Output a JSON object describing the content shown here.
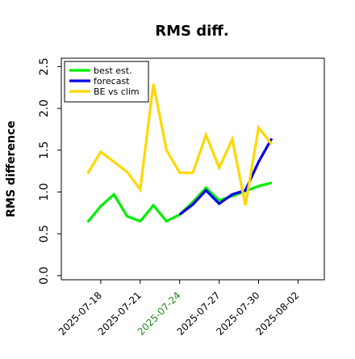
{
  "chart_data": {
    "type": "line",
    "title": "RMS diff.",
    "ylabel": "RMS difference",
    "xlabel": "",
    "ylim": [
      -0.05,
      2.6
    ],
    "yticks": [
      0.0,
      0.5,
      1.0,
      1.5,
      2.0,
      2.5
    ],
    "ytick_labels": [
      "0.0",
      "0.5",
      "1.0",
      "1.5",
      "2.0",
      "2.5"
    ],
    "xticks": [
      "2025-07-18",
      "2025-07-21",
      "2025-07-24",
      "2025-07-27",
      "2025-07-30",
      "2025-08-02"
    ],
    "xtick_labels": [
      "2025-07-18",
      "2025-07-21",
      "2025-07-24",
      "2025-07-27",
      "2025-07-30",
      "2025-08-02"
    ],
    "xtick_colors": [
      "#000000",
      "#000000",
      "#228b22",
      "#000000",
      "#000000",
      "#000000"
    ],
    "grid": false,
    "legend_position": "top-left",
    "series": [
      {
        "name": "best est.",
        "color": "#00ee00",
        "x": [
          "2025-07-17",
          "2025-07-18",
          "2025-07-19",
          "2025-07-20",
          "2025-07-21",
          "2025-07-22",
          "2025-07-23",
          "2025-07-24",
          "2025-07-25",
          "2025-07-26",
          "2025-07-27",
          "2025-07-28",
          "2025-07-29",
          "2025-07-30",
          "2025-07-31"
        ],
        "values": [
          0.64,
          0.83,
          0.97,
          0.71,
          0.65,
          0.84,
          0.65,
          0.73,
          0.88,
          1.05,
          0.9,
          0.95,
          1.01,
          1.07,
          1.11
        ]
      },
      {
        "name": "forecast",
        "color": "#0000ee",
        "x": [
          "2025-07-24",
          "2025-07-25",
          "2025-07-26",
          "2025-07-27",
          "2025-07-28",
          "2025-07-29",
          "2025-07-30",
          "2025-07-31"
        ],
        "values": [
          0.73,
          0.85,
          1.02,
          0.86,
          0.97,
          1.02,
          1.36,
          1.64
        ]
      },
      {
        "name": "BE vs clim",
        "color": "#ffd700",
        "x": [
          "2025-07-17",
          "2025-07-18",
          "2025-07-19",
          "2025-07-20",
          "2025-07-21",
          "2025-07-22",
          "2025-07-23",
          "2025-07-24",
          "2025-07-25",
          "2025-07-26",
          "2025-07-27",
          "2025-07-28",
          "2025-07-29",
          "2025-07-30",
          "2025-07-31"
        ],
        "values": [
          1.22,
          1.48,
          1.36,
          1.24,
          1.03,
          2.29,
          1.5,
          1.23,
          1.23,
          1.68,
          1.29,
          1.63,
          0.84,
          1.77,
          1.57
        ]
      }
    ]
  }
}
